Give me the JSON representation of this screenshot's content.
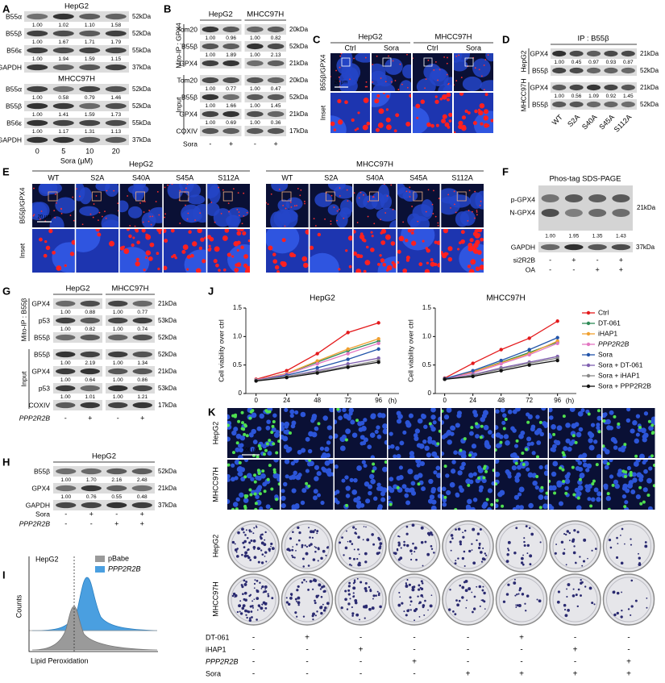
{
  "A": {
    "label": "A",
    "groups": [
      {
        "title": "HepG2",
        "rows": [
          {
            "name": "B55α",
            "quant": [
              "1.00",
              "1.02",
              "1.10",
              "1.58"
            ],
            "size": "52kDa"
          },
          {
            "name": "B55β",
            "quant": [
              "1.00",
              "1.67",
              "1.71",
              "1.79"
            ],
            "size": "52kDa"
          },
          {
            "name": "B56ε",
            "quant": [
              "1.00",
              "1.94",
              "1.59",
              "1.15"
            ],
            "size": "55kDa"
          },
          {
            "name": "GAPDH",
            "size": "37kDa"
          }
        ]
      },
      {
        "title": "MHCC97H",
        "rows": [
          {
            "name": "B55α",
            "quant": [
              "1.00",
              "0.58",
              "0.79",
              "1.46"
            ],
            "size": "52kDa"
          },
          {
            "name": "B55β",
            "quant": [
              "1.00",
              "1.41",
              "1.59",
              "1.73"
            ],
            "size": "52kDa"
          },
          {
            "name": "B56ε",
            "quant": [
              "1.00",
              "1.17",
              "1.31",
              "1.13"
            ],
            "size": "55kDa"
          },
          {
            "name": "GAPDH",
            "size": "37kDa"
          }
        ]
      }
    ],
    "lane_rows": [
      {
        "values": [
          "0",
          "5",
          "10",
          "20"
        ]
      }
    ],
    "lane_title": "Sora (μM)"
  },
  "B": {
    "label": "B",
    "cells": [
      "HepG2",
      "MHCC97H"
    ],
    "sections": [
      {
        "title": "Mito-IP : GPX4",
        "rows": [
          {
            "name": "Tom20",
            "quant": [
              "1.00",
              "0.96",
              "1.00",
              "0.82"
            ],
            "size": "20kDa"
          },
          {
            "name": "B55β",
            "quant": [
              "1.00",
              "1.89",
              "1.00",
              "2.13"
            ],
            "size": "52kDa"
          },
          {
            "name": "GPX4",
            "size": "21kDa"
          }
        ]
      },
      {
        "title": "Input",
        "rows": [
          {
            "name": "Tom20",
            "quant": [
              "1.00",
              "0.77",
              "1.00",
              "0.47"
            ],
            "size": "20kDa"
          },
          {
            "name": "B55β",
            "quant": [
              "1.00",
              "1.66",
              "1.00",
              "1.45"
            ],
            "size": "52kDa"
          },
          {
            "name": "GPX4",
            "quant": [
              "1.00",
              "0.69",
              "1.00",
              "0.36"
            ],
            "size": "21kDa"
          },
          {
            "name": "COXIV",
            "size": "17kDa"
          }
        ]
      }
    ],
    "lane_rows": [
      {
        "name": "Sora",
        "values": [
          "-",
          "+",
          "-",
          "+"
        ]
      }
    ]
  },
  "C": {
    "label": "C",
    "cells": [
      "HepG2",
      "MHCC97H"
    ],
    "conditions": [
      "Ctrl",
      "Sora",
      "Ctrl",
      "Sora"
    ],
    "rows": [
      "B55β/GPX4",
      "Inset"
    ],
    "scale": "20 μm"
  },
  "D": {
    "label": "D",
    "title": "IP : B55β",
    "sections": [
      {
        "title": "HepG2",
        "rows": [
          {
            "name": "GPX4",
            "quant": [
              "1.00",
              "0.45",
              "0.97",
              "0.93",
              "0.87"
            ],
            "size": "21kDa"
          },
          {
            "name": "B55β",
            "size": "52kDa"
          }
        ]
      },
      {
        "title": "MHCC97H",
        "rows": [
          {
            "name": "GPX4",
            "quant": [
              "1.00",
              "0.56",
              "1.09",
              "0.92",
              "1.45"
            ],
            "size": "21kDa"
          },
          {
            "name": "B55β",
            "size": "52kDa"
          }
        ]
      }
    ],
    "lane_rows": [
      {
        "values": [
          "WT",
          "S2A",
          "S40A",
          "S45A",
          "S112A"
        ]
      }
    ]
  },
  "E": {
    "label": "E",
    "cells": [
      {
        "name": "HepG2",
        "lanes": [
          "WT",
          "S2A",
          "S40A",
          "S45A",
          "S112A"
        ]
      },
      {
        "name": "MHCC97H",
        "lanes": [
          "WT",
          "S2A",
          "S40A",
          "S45A",
          "S112A"
        ]
      }
    ],
    "rows": [
      "B55β/GPX4",
      "Inset"
    ],
    "scale": "20 μm"
  },
  "F": {
    "label": "F",
    "title": "Phos-tag SDS-PAGE",
    "rows": [
      {
        "names": [
          "p-GPX4",
          "N-GPX4"
        ],
        "quant": [
          "1.00",
          "1.95",
          "1.35",
          "1.43"
        ],
        "size": "21kDa"
      },
      {
        "name": "GAPDH",
        "size": "37kDa"
      }
    ],
    "lane_rows": [
      {
        "name": "si2R2B",
        "values": [
          "-",
          "+",
          "-",
          "+"
        ]
      },
      {
        "name": "OA",
        "values": [
          "-",
          "-",
          "+",
          "+"
        ]
      }
    ]
  },
  "G": {
    "label": "G",
    "cells": [
      "HepG2",
      "MHCC97H"
    ],
    "sections": [
      {
        "title": "Mito-IP : B55β",
        "rows": [
          {
            "name": "GPX4",
            "quant": [
              "1.00",
              "0.88",
              "1.00",
              "0.77"
            ],
            "size": "21kDa"
          },
          {
            "name": "p53",
            "quant": [
              "1.00",
              "0.82",
              "1.00",
              "0.74"
            ],
            "size": "53kDa"
          },
          {
            "name": "B55β",
            "size": "52kDa"
          }
        ]
      },
      {
        "title": "Input",
        "rows": [
          {
            "name": "B55β",
            "quant": [
              "1.00",
              "2.19",
              "1.00",
              "1.34"
            ],
            "size": "52kDa"
          },
          {
            "name": "GPX4",
            "quant": [
              "1.00",
              "0.64",
              "1.00",
              "0.86"
            ],
            "size": "21kDa"
          },
          {
            "name": "p53",
            "quant": [
              "1.00",
              "1.01",
              "1.00",
              "1.21"
            ],
            "size": "53kDa"
          },
          {
            "name": "COXIV",
            "size": "17kDa"
          }
        ]
      }
    ],
    "lane_rows": [
      {
        "name": "PPP2R2B",
        "values": [
          "-",
          "+",
          "-",
          "+"
        ]
      }
    ]
  },
  "H": {
    "label": "H",
    "cells": [
      "HepG2"
    ],
    "rows": [
      {
        "name": "B55β",
        "quant": [
          "1.00",
          "1.70",
          "2.16",
          "2.48"
        ],
        "size": "52kDa"
      },
      {
        "name": "GPX4",
        "quant": [
          "1.00",
          "0.76",
          "0.55",
          "0.48"
        ],
        "size": "21kDa"
      },
      {
        "name": "GAPDH",
        "size": "37kDa"
      }
    ],
    "lane_rows": [
      {
        "name": "Sora",
        "values": [
          "-",
          "+",
          "-",
          "+"
        ]
      },
      {
        "name": "PPP2R2B",
        "values": [
          "-",
          "-",
          "+",
          "+"
        ]
      }
    ]
  },
  "I": {
    "label": "I",
    "cell": "HepG2",
    "legend": [
      "pBabe",
      "PPP2R2B"
    ],
    "ylabel": "Counts",
    "xlabel": "Lipid Peroxidation"
  },
  "J": {
    "label": "J"
  },
  "K": {
    "label": "K",
    "if_rows": [
      "HepG2",
      "MHCC97H"
    ],
    "colony_rows": [
      "HepG2",
      "MHCC97H"
    ],
    "scale": "100 μm",
    "treatments": [
      {
        "name": "DT-061",
        "values": [
          "-",
          "+",
          "-",
          "-",
          "-",
          "+",
          "-",
          "-"
        ]
      },
      {
        "name": "iHAP1",
        "values": [
          "-",
          "-",
          "+",
          "-",
          "-",
          "-",
          "+",
          "-"
        ]
      },
      {
        "name": "PPP2R2B",
        "values": [
          "-",
          "-",
          "-",
          "+",
          "-",
          "-",
          "-",
          "+"
        ]
      },
      {
        "name": "Sora",
        "values": [
          "-",
          "-",
          "-",
          "-",
          "+",
          "+",
          "+",
          "+"
        ]
      }
    ]
  },
  "chart_data": [
    {
      "type": "line",
      "title": "HepG2",
      "ylabel": "Cell viability over ctrl",
      "xlabel": "(h)",
      "x": [
        0,
        24,
        48,
        72,
        96
      ],
      "xlim": [
        -8,
        112
      ],
      "xticks": [
        0,
        24,
        48,
        72,
        96
      ],
      "ylim": [
        0,
        1.5
      ],
      "yticks": [
        0,
        0.5,
        {
          "value": 1,
          "label": "1.0"
        },
        1.5
      ],
      "series": [
        {
          "name": "Ctrl",
          "color": "#e41a1c",
          "values": [
            0.25,
            0.4,
            0.7,
            1.07,
            1.24
          ]
        },
        {
          "name": "DT-061",
          "color": "#2e8b57",
          "values": [
            0.24,
            0.35,
            0.55,
            0.75,
            0.92
          ]
        },
        {
          "name": "iHAP1",
          "color": "#f0a030",
          "values": [
            0.24,
            0.35,
            0.57,
            0.78,
            0.96
          ]
        },
        {
          "name": "PPP2R2B",
          "color": "#e377c2",
          "values": [
            0.24,
            0.34,
            0.52,
            0.7,
            0.88
          ]
        },
        {
          "name": "Sora",
          "color": "#2255aa",
          "values": [
            0.23,
            0.32,
            0.45,
            0.6,
            0.78
          ]
        },
        {
          "name": "Sora + DT-061",
          "color": "#8060b0",
          "values": [
            0.23,
            0.3,
            0.4,
            0.52,
            0.62
          ]
        },
        {
          "name": "Sora + iHAP1",
          "color": "#888888",
          "values": [
            0.23,
            0.3,
            0.38,
            0.48,
            0.58
          ]
        },
        {
          "name": "Sora + PPP2R2B",
          "color": "#111111",
          "values": [
            0.22,
            0.28,
            0.36,
            0.46,
            0.55
          ]
        }
      ]
    },
    {
      "type": "line",
      "title": "MHCC97H",
      "ylabel": "Cell viability over ctrl",
      "xlabel": "(h)",
      "x": [
        0,
        24,
        48,
        72,
        96
      ],
      "xlim": [
        -8,
        112
      ],
      "xticks": [
        0,
        24,
        48,
        72,
        96
      ],
      "ylim": [
        0,
        1.5
      ],
      "yticks": [
        0,
        0.5,
        {
          "value": 1,
          "label": "1.0"
        },
        1.5
      ],
      "series": [
        {
          "values": [
            0.27,
            0.53,
            0.77,
            0.97,
            1.27
          ]
        },
        {
          "values": [
            0.26,
            0.38,
            0.55,
            0.72,
            0.9
          ]
        },
        {
          "values": [
            0.26,
            0.38,
            0.54,
            0.7,
            0.92
          ]
        },
        {
          "values": [
            0.26,
            0.36,
            0.52,
            0.68,
            0.88
          ]
        },
        {
          "values": [
            0.26,
            0.4,
            0.58,
            0.77,
            0.98
          ]
        },
        {
          "values": [
            0.25,
            0.33,
            0.45,
            0.55,
            0.65
          ]
        },
        {
          "values": [
            0.25,
            0.32,
            0.43,
            0.53,
            0.62
          ]
        },
        {
          "values": [
            0.25,
            0.3,
            0.4,
            0.5,
            0.58
          ]
        }
      ]
    }
  ]
}
